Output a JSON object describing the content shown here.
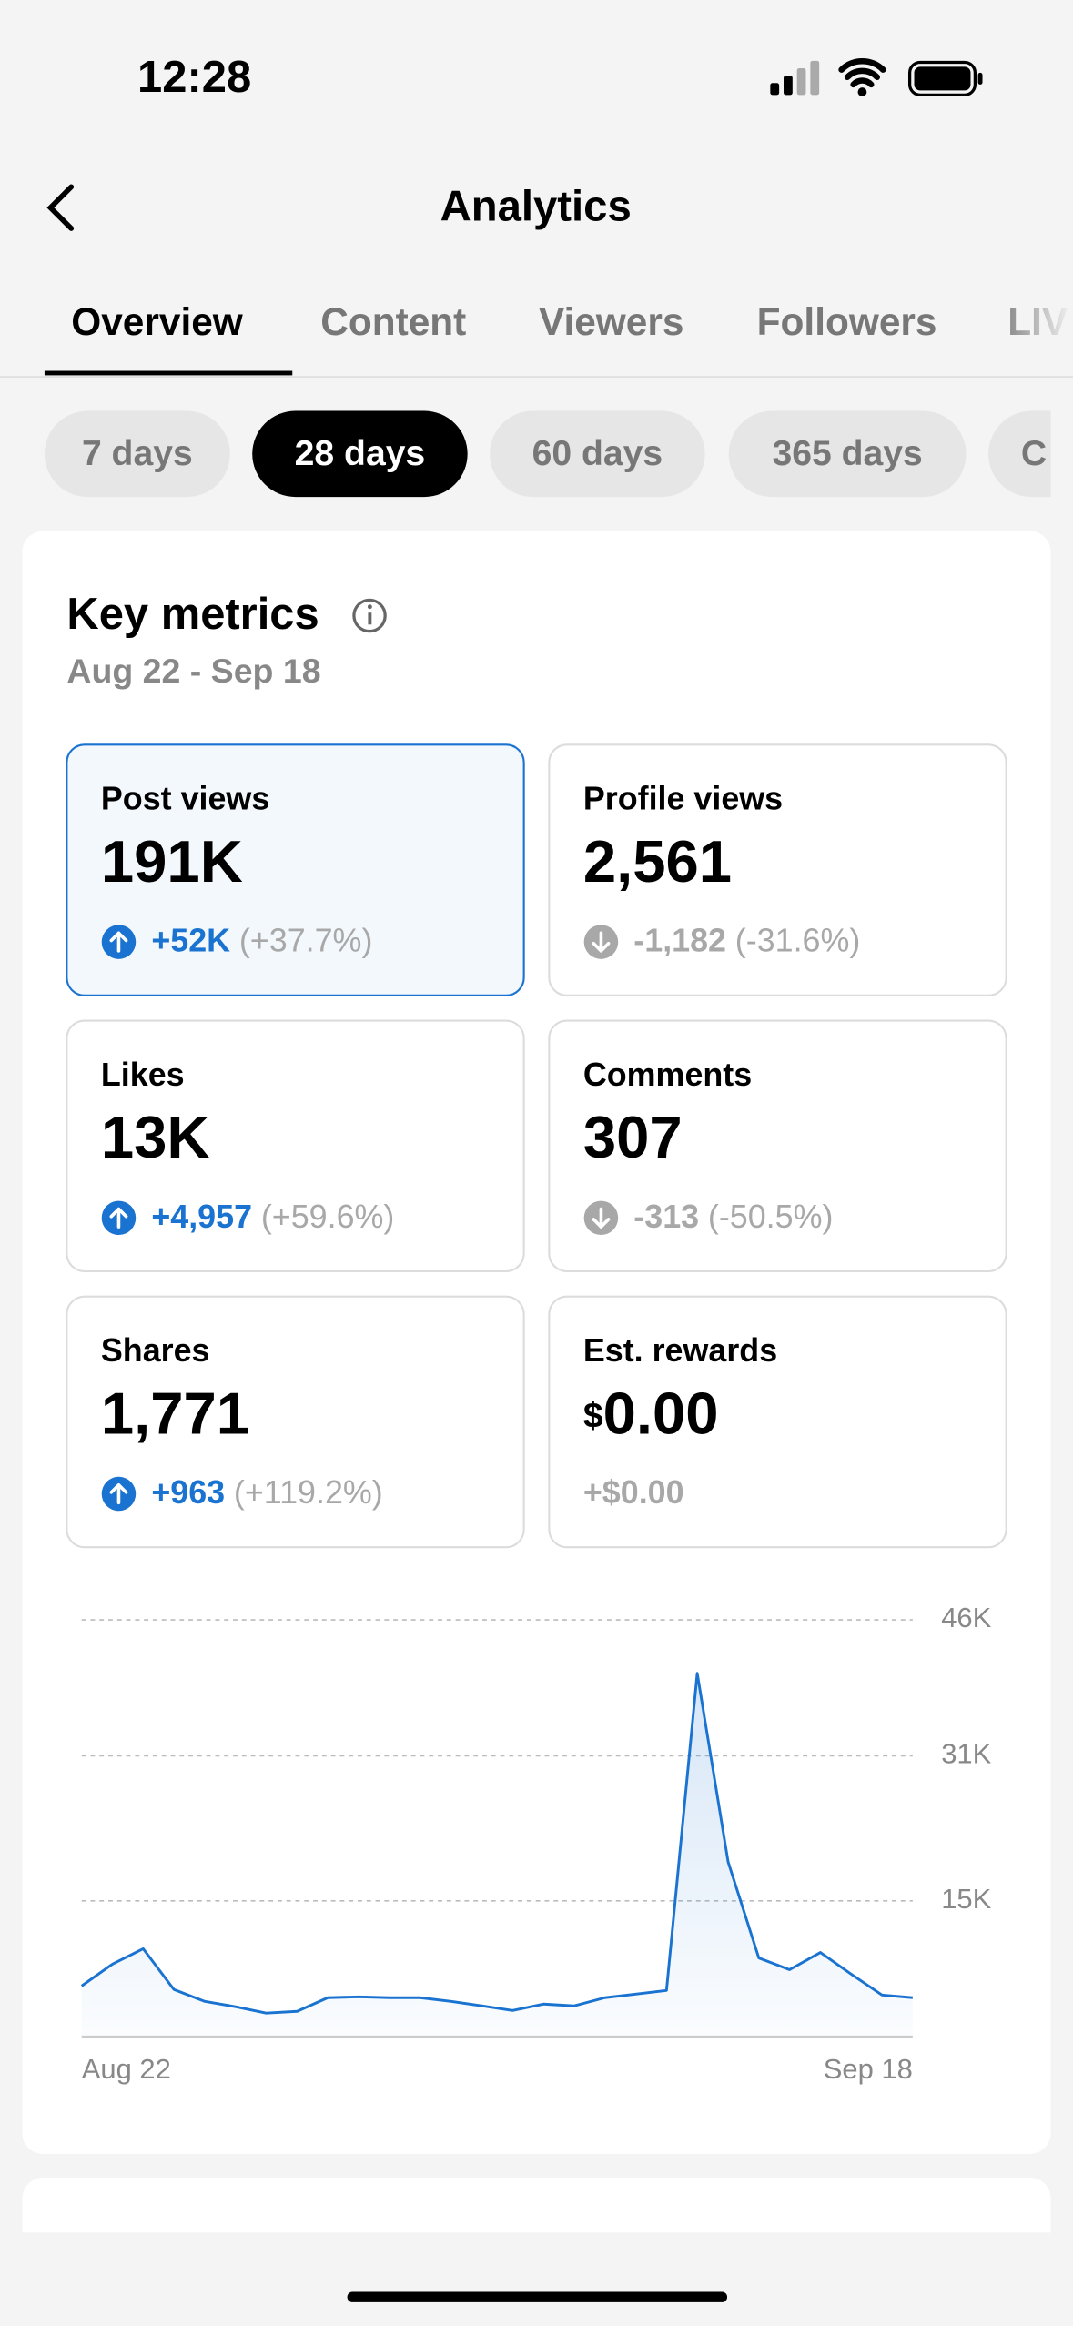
{
  "status": {
    "time": "12:28"
  },
  "header": {
    "title": "Analytics"
  },
  "tabs": [
    "Overview",
    "Content",
    "Viewers",
    "Followers",
    "LIV"
  ],
  "ranges": [
    "7 days",
    "28 days",
    "60 days",
    "365 days",
    "C"
  ],
  "card": {
    "title": "Key metrics",
    "dates": "Aug 22 - Sep 18",
    "metrics": [
      {
        "label": "Post views",
        "value": "191K",
        "change": "+52K",
        "pct": "(+37.7%)"
      },
      {
        "label": "Profile views",
        "value": "2,561",
        "change": "-1,182",
        "pct": "(-31.6%)"
      },
      {
        "label": "Likes",
        "value": "13K",
        "change": "+4,957",
        "pct": "(+59.6%)"
      },
      {
        "label": "Comments",
        "value": "307",
        "change": "-313",
        "pct": "(-50.5%)"
      },
      {
        "label": "Shares",
        "value": "1,771",
        "change": "+963",
        "pct": "(+119.2%)"
      },
      {
        "label": "Est. rewards",
        "currency": "$",
        "value": "0.00",
        "change": "+$0.00"
      }
    ]
  },
  "chart_data": {
    "type": "line",
    "color": "#1a73d0",
    "grid": true,
    "categories": [
      "Aug 22",
      null,
      null,
      null,
      null,
      null,
      null,
      null,
      null,
      null,
      null,
      null,
      null,
      null,
      null,
      null,
      null,
      null,
      null,
      null,
      null,
      null,
      null,
      null,
      null,
      null,
      null,
      "Sep 18"
    ],
    "values": [
      5600,
      8000,
      9700,
      5200,
      3900,
      3300,
      2600,
      2800,
      4300,
      4400,
      4300,
      4300,
      3900,
      3400,
      2900,
      3600,
      3400,
      4300,
      4700,
      5100,
      40100,
      19300,
      8700,
      7400,
      9300,
      6900,
      4600,
      4300
    ],
    "ylim": [
      0,
      46000
    ],
    "yticks": [
      {
        "value": 15000,
        "label": "15K"
      },
      {
        "value": 31000,
        "label": "31K"
      },
      {
        "value": 46000,
        "label": "46K"
      }
    ]
  }
}
